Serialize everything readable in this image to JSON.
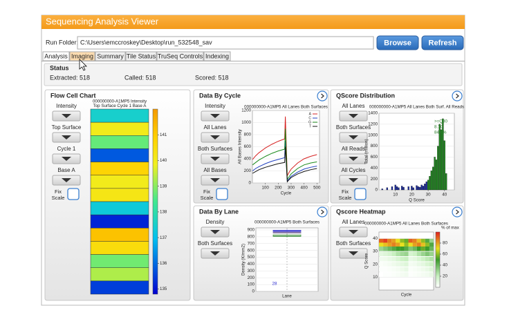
{
  "window": {
    "title": "Sequencing Analysis Viewer"
  },
  "run_folder": {
    "label": "Run Folder:",
    "path": "C:\\Users\\emccroskey\\Desktop\\run_532548_sav"
  },
  "buttons": [
    "Browse",
    "Refresh"
  ],
  "tabs": [
    "Analysis",
    "Imaging",
    "Summary",
    "Tile Status",
    "TruSeq Controls",
    "Indexing"
  ],
  "status": {
    "title": "Status",
    "items": [
      "Extracted: 518",
      "Called: 518",
      "Scored: 518"
    ]
  },
  "panels": [
    {
      "title": "Flow Cell Chart",
      "controls": [
        "Intensity",
        "Top Surface",
        "Cycle 1",
        "Base A"
      ],
      "fix_scale": [
        "Fix",
        "Scale"
      ],
      "chart": {
        "type": "tilemap",
        "title": "000000000-A1MP5  Intensity",
        "subtitle": "Top Surface  Cycle 1  Base A",
        "values": [
          137.5,
          140,
          138.7,
          135.8,
          140.8,
          140,
          140.2,
          137.3,
          135.2,
          141.2,
          140.5,
          138.8,
          139.3,
          135.5
        ],
        "clim": [
          134.8,
          142
        ],
        "cticks": [
          141,
          140,
          139,
          138,
          137,
          136,
          135
        ]
      }
    },
    {
      "title": "Data By Cycle",
      "controls": [
        "Intensity",
        "All Lanes",
        "Both Surfaces",
        "All Bases"
      ],
      "fix_scale": [
        "Fix",
        "Scale"
      ],
      "chart": {
        "type": "line",
        "title": "000000000-A1MP5 All Lanes Both Surfaces",
        "xlabel": "Cycle",
        "ylabel": "All Bases Intensity",
        "x": [
          1,
          25,
          50,
          100,
          150,
          200,
          250,
          255,
          270,
          280,
          300,
          350,
          400,
          450,
          500
        ],
        "xlim": [
          0,
          520
        ],
        "xticks": [
          100,
          200,
          300,
          400,
          500
        ],
        "ylim": [
          0,
          1200
        ],
        "yticks": [
          0,
          200,
          400,
          600,
          800,
          1000,
          1200
        ],
        "series": [
          {
            "name": "A",
            "color": "#d62020",
            "values": [
              390,
              450,
              500,
              580,
              640,
              690,
              730,
              1100,
              120,
              160,
              230,
              330,
              400,
              440,
              470
            ]
          },
          {
            "name": "C",
            "color": "#1f3fbf",
            "values": [
              200,
              240,
              270,
              320,
              360,
              390,
              420,
              700,
              30,
              60,
              110,
              180,
              230,
              260,
              280
            ]
          },
          {
            "name": "G",
            "color": "#1a8a1a",
            "values": [
              300,
              340,
              380,
              440,
              490,
              530,
              560,
              900,
              60,
              90,
              150,
              240,
              300,
              330,
              350
            ]
          },
          {
            "name": "T",
            "color": "#111111",
            "values": [
              160,
              190,
              220,
              260,
              290,
              320,
              340,
              600,
              20,
              45,
              90,
              150,
              190,
              220,
              240
            ]
          }
        ]
      }
    },
    {
      "title": "QScore Distribution",
      "controls": [
        "All Lanes",
        "Both Surfaces",
        "All Reads",
        "All Cycles"
      ],
      "fix_scale": [
        "Fix",
        "Scale"
      ],
      "chart": {
        "type": "histogram",
        "title": "000000000-A1MP5 All Lanes Both Surf. All Reads",
        "xlabel": "Q Score",
        "ylabel": "Total (million)",
        "annotation": [
          ">=Q30",
          "8.7G",
          "84.6%"
        ],
        "xlim": [
          0,
          46
        ],
        "xticks": [
          10,
          20,
          30,
          40
        ],
        "ylim": [
          0,
          1400
        ],
        "yticks": [
          0,
          200,
          400,
          600,
          800,
          1000,
          1200,
          1400
        ],
        "series": [
          {
            "color": "#1a2aa0",
            "x": [
              2,
              5,
              8,
              10,
              11,
              12,
              14,
              15,
              18,
              20,
              21,
              23,
              24,
              25,
              26,
              27,
              28,
              29
            ],
            "values": [
              20,
              40,
              60,
              90,
              60,
              40,
              70,
              50,
              60,
              70,
              40,
              80,
              60,
              50,
              90,
              70,
              110,
              150
            ]
          },
          {
            "color": "#1e8a1e",
            "x": [
              30,
              31,
              32,
              33,
              34,
              35,
              36,
              37,
              38,
              39,
              40,
              41
            ],
            "values": [
              180,
              250,
              350,
              420,
              600,
              550,
              800,
              1200,
              1100,
              1300,
              900,
              300
            ]
          }
        ]
      }
    },
    {
      "title": "Data By Lane",
      "controls": [
        "Density",
        "Both Surfaces"
      ],
      "chart": {
        "type": "box",
        "title": "000000000-A1MP5 Both Surfaces",
        "xlabel": "Lane",
        "ylabel": "Density (K/mm2)",
        "annotation": "28",
        "x": [
          1
        ],
        "xlim": [
          0,
          2
        ],
        "ylim": [
          0,
          930
        ],
        "yticks": [
          0,
          100,
          200,
          300,
          400,
          500,
          600,
          700,
          800,
          900
        ],
        "series": [
          {
            "color": "#3a3ad0",
            "low": [
              870
            ],
            "q1": [
              878
            ],
            "median": [
              885
            ],
            "q3": [
              895
            ],
            "high": [
              905
            ]
          },
          {
            "color": "#8a7aa8",
            "low": [
              848
            ],
            "q1": [
              853
            ],
            "median": [
              860
            ],
            "q3": [
              868
            ],
            "high": [
              876
            ]
          },
          {
            "color": "#3d8f3d",
            "low": [
              795
            ],
            "q1": [
              805
            ],
            "median": [
              815
            ],
            "q3": [
              828
            ],
            "high": [
              836
            ]
          }
        ]
      }
    },
    {
      "title": "Qscore Heatmap",
      "controls": [
        "All Lanes",
        "Both Surfaces"
      ],
      "chart": {
        "type": "heatmap",
        "title": "000000000-A1MP5 All Lanes Both Surfaces",
        "xlabel": "Cycle",
        "ylabel": "Q Score",
        "clabel": "% of max",
        "x": [
          20,
          60,
          100,
          140,
          180,
          220,
          260,
          300,
          340,
          380,
          420,
          460,
          500
        ],
        "rows": [
          38,
          35,
          32,
          28,
          24,
          20,
          16,
          12
        ],
        "values": [
          [
            90,
            95,
            85,
            80,
            70,
            60,
            55,
            90,
            85,
            75,
            60,
            45,
            30
          ],
          [
            70,
            75,
            80,
            85,
            80,
            70,
            60,
            70,
            80,
            85,
            75,
            60,
            45
          ],
          [
            30,
            35,
            40,
            45,
            50,
            50,
            45,
            35,
            40,
            50,
            55,
            50,
            40
          ],
          [
            10,
            12,
            15,
            20,
            25,
            28,
            30,
            15,
            18,
            25,
            30,
            35,
            30
          ],
          [
            5,
            6,
            8,
            10,
            14,
            18,
            20,
            8,
            10,
            14,
            18,
            22,
            25
          ],
          [
            2,
            3,
            4,
            6,
            8,
            10,
            12,
            4,
            5,
            8,
            10,
            14,
            18
          ],
          [
            1,
            1,
            2,
            3,
            4,
            6,
            8,
            2,
            3,
            4,
            6,
            8,
            12
          ],
          [
            0,
            1,
            1,
            2,
            3,
            4,
            5,
            1,
            2,
            3,
            4,
            5,
            8
          ]
        ],
        "xlim": [
          0,
          520
        ],
        "ylim": [
          0,
          45
        ],
        "yticks": [
          10,
          20,
          30,
          40
        ],
        "clim": [
          0,
          100
        ],
        "cticks": [
          20,
          40,
          60,
          80
        ]
      }
    }
  ]
}
